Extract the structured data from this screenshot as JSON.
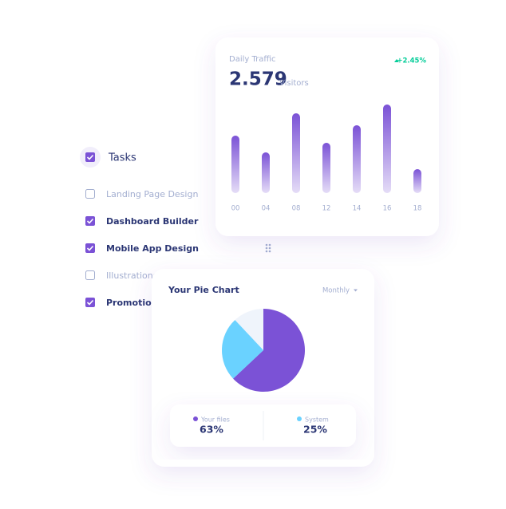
{
  "tasks": {
    "title": "Tasks",
    "items": [
      {
        "label": "Landing Page Design",
        "checked": false
      },
      {
        "label": "Dashboard Builder",
        "checked": true
      },
      {
        "label": "Mobile App Design",
        "checked": true
      },
      {
        "label": "Illustrations",
        "checked": false
      },
      {
        "label": "Promotion",
        "checked": true
      }
    ]
  },
  "traffic": {
    "title": "Daily Traffic",
    "value": 2.579,
    "unit": "Visitors",
    "change": "+2.45%",
    "chart": {
      "type": "bar",
      "categories": [
        "00",
        "04",
        "08",
        "12",
        "14",
        "16",
        "18"
      ],
      "values": [
        72,
        51,
        100,
        63,
        85,
        111,
        30
      ],
      "color": "#7b52d6"
    }
  },
  "pie": {
    "title": "Your Pie Chart",
    "period": "Monthly",
    "chart": {
      "type": "pie",
      "categories": [
        "Your files",
        "System"
      ],
      "values": [
        63,
        25
      ],
      "value_labels": [
        "63%",
        "25%"
      ],
      "colors": [
        "#7b52d6",
        "#6ad2ff"
      ]
    }
  }
}
